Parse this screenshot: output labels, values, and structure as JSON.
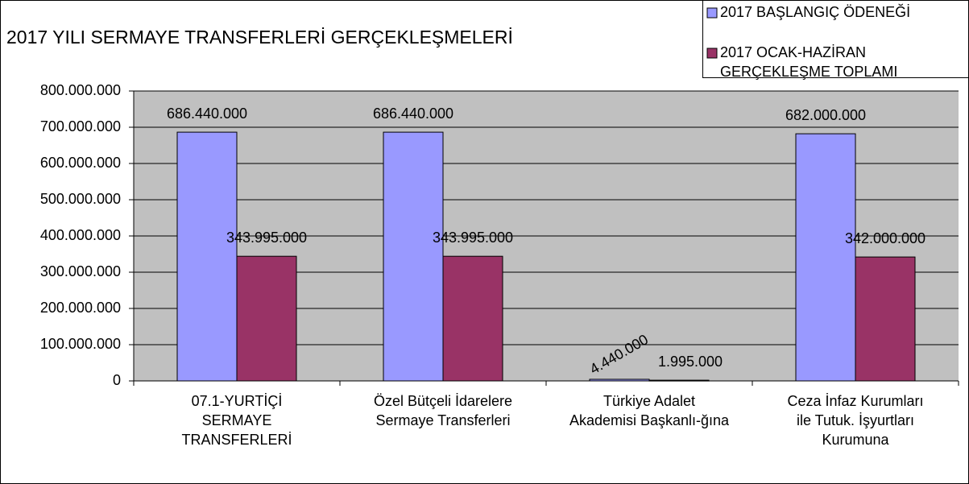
{
  "chart_data": {
    "type": "bar",
    "title": "2017 YILI SERMAYE TRANSFERLERİ GERÇEKLEŞMELERİ",
    "categories": [
      "07.1-YURTİÇİ\nSERMAYE\nTRANSFERLERİ",
      "Özel Bütçeli İdarelere\nSermaye Transferleri",
      "Türkiye Adalet\nAkademisi Başkanlı-ğına",
      "Ceza İnfaz Kurumları\nile Tutuk. İşyurtları\nKurumuna"
    ],
    "series": [
      {
        "name": "2017 BAŞLANGIÇ ÖDENEĞİ",
        "color": "#9999ff",
        "values": [
          686440000,
          686440000,
          4440000,
          682000000
        ],
        "value_labels": [
          "686.440.000",
          "686.440.000",
          "4.440.000",
          "682.000.000"
        ]
      },
      {
        "name": "2017 OCAK-HAZİRAN\nGERÇEKLEŞME TOPLAMI",
        "color": "#993366",
        "values": [
          343995000,
          343995000,
          1995000,
          342000000
        ],
        "value_labels": [
          "343.995.000",
          "343.995.000",
          "1.995.000",
          "342.000.000"
        ]
      }
    ],
    "ylim": [
      0,
      800000000
    ],
    "yticks": [
      0,
      {
        "value": 100000000,
        "label": "100.000.000"
      },
      {
        "value": 200000000,
        "label": "200.000.000"
      },
      {
        "value": 300000000,
        "label": "300.000.000"
      },
      {
        "value": 400000000,
        "label": "400.000.000"
      },
      {
        "value": 500000000,
        "label": "500.000.000"
      },
      {
        "value": 600000000,
        "label": "600.000.000"
      },
      {
        "value": 700000000,
        "label": "700.000.000"
      },
      {
        "value": 800000000,
        "label": "800.000.000"
      }
    ],
    "grid": true,
    "legend": "top-right"
  }
}
